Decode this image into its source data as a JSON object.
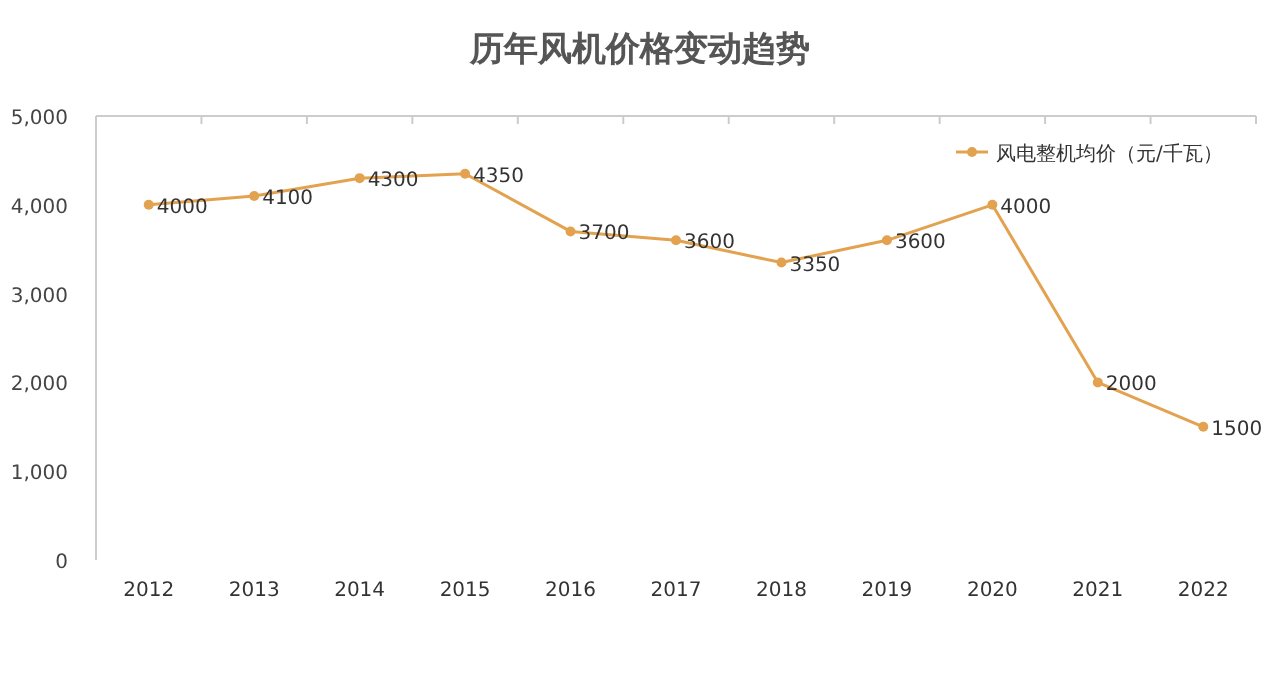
{
  "chart_data": {
    "type": "line",
    "title": "历年风机价格变动趋势",
    "categories": [
      "2012",
      "2013",
      "2014",
      "2015",
      "2016",
      "2017",
      "2018",
      "2019",
      "2020",
      "2021",
      "2022"
    ],
    "series": [
      {
        "name": "风电整机均价（元/千瓦）",
        "color": "#e3a24f",
        "values": [
          4000,
          4100,
          4300,
          4350,
          3700,
          3600,
          3350,
          3600,
          4000,
          2000,
          1500
        ]
      }
    ],
    "data_labels": true,
    "ylim": [
      0,
      5000
    ],
    "yticks": [
      0,
      {
        "value": 1000,
        "label": "1,000"
      },
      {
        "value": 2000,
        "label": "2,000"
      },
      {
        "value": 3000,
        "label": "3,000"
      },
      {
        "value": 4000,
        "label": "4,000"
      },
      {
        "value": 5000,
        "label": "5,000"
      }
    ],
    "marker": "circle",
    "legend": "top right",
    "grid": false
  }
}
